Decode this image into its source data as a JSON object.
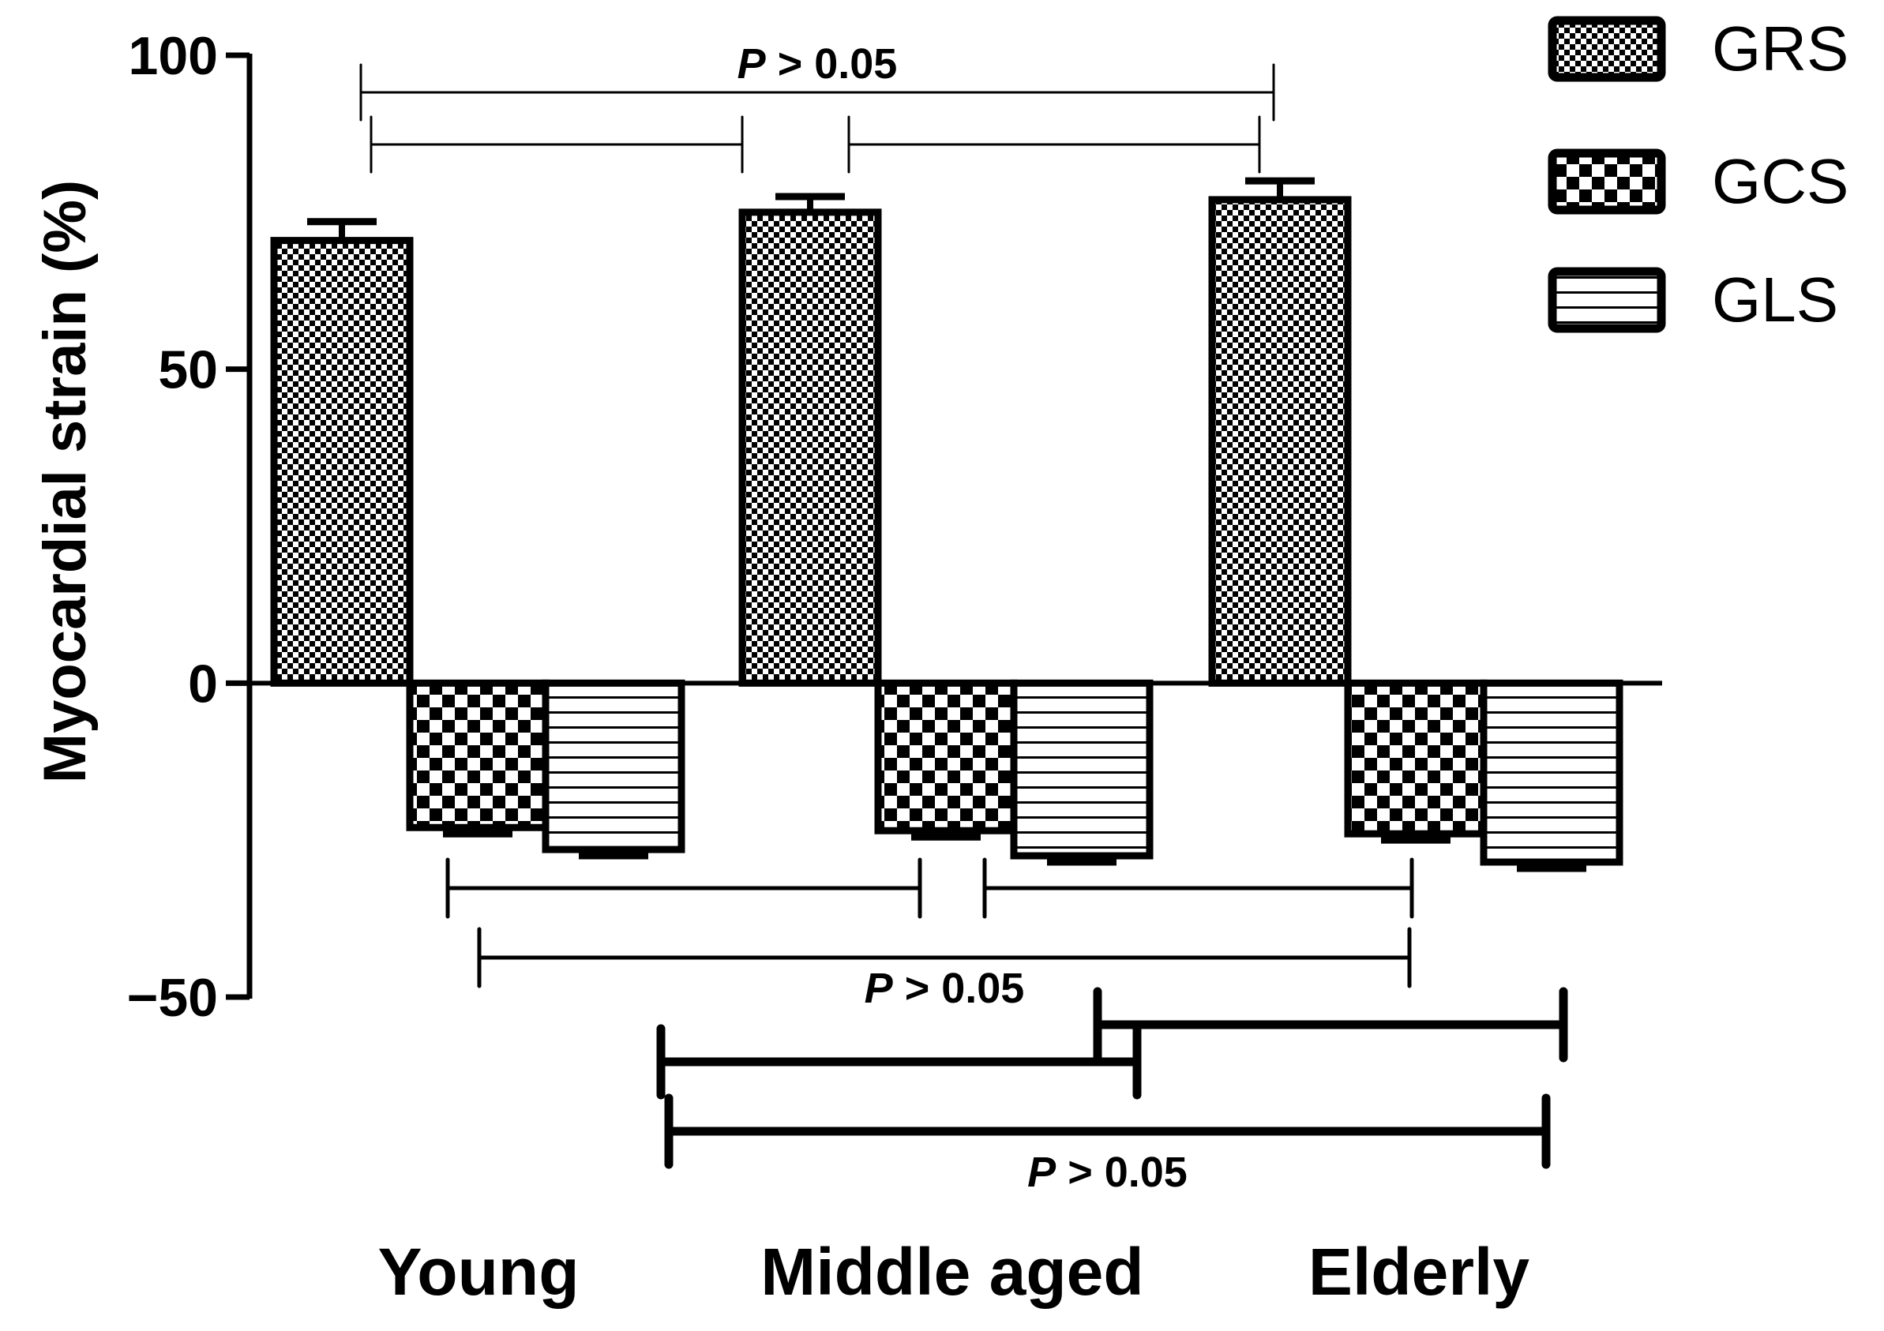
{
  "chart_data": {
    "type": "bar",
    "title": "",
    "xlabel": "",
    "ylabel": "Myocardial strain (%)",
    "ylim": [
      -50,
      100
    ],
    "yticks": [
      -50,
      0,
      50,
      100
    ],
    "ytick_labels": [
      "−50",
      "0",
      "50",
      "100"
    ],
    "grid": false,
    "legend_position": "top-right",
    "categories": [
      "Young",
      "Middle aged",
      "Elderly"
    ],
    "series": [
      {
        "name": "GRS",
        "pattern": "fine-checker",
        "values": [
          70.5,
          75,
          77
        ],
        "errors": [
          3.0,
          2.5,
          3.0
        ]
      },
      {
        "name": "GCS",
        "pattern": "coarse-checker",
        "values": [
          -23,
          -23.5,
          -24
        ],
        "errors": [
          1.0,
          1.0,
          1.0
        ]
      },
      {
        "name": "GLS",
        "pattern": "horizontal-lines",
        "values": [
          -26.5,
          -27.5,
          -28.5
        ],
        "errors": [
          1.0,
          1.0,
          1.0
        ]
      }
    ],
    "comparisons": [
      {
        "series": "GRS",
        "from": "Young",
        "to": "Middle aged",
        "label": ""
      },
      {
        "series": "GRS",
        "from": "Middle aged",
        "to": "Elderly",
        "label": ""
      },
      {
        "series": "GRS",
        "from": "Young",
        "to": "Elderly",
        "label": "P > 0.05"
      },
      {
        "series": "GCS",
        "from": "Young",
        "to": "Middle aged",
        "label": ""
      },
      {
        "series": "GCS",
        "from": "Middle aged",
        "to": "Elderly",
        "label": ""
      },
      {
        "series": "GCS",
        "from": "Young",
        "to": "Elderly",
        "label": "P > 0.05"
      },
      {
        "series": "GLS",
        "from": "Young",
        "to": "Middle aged",
        "label": ""
      },
      {
        "series": "GLS",
        "from": "Middle aged",
        "to": "Elderly",
        "label": ""
      },
      {
        "series": "GLS",
        "from": "Young",
        "to": "Elderly",
        "label": "P > 0.05"
      }
    ]
  }
}
